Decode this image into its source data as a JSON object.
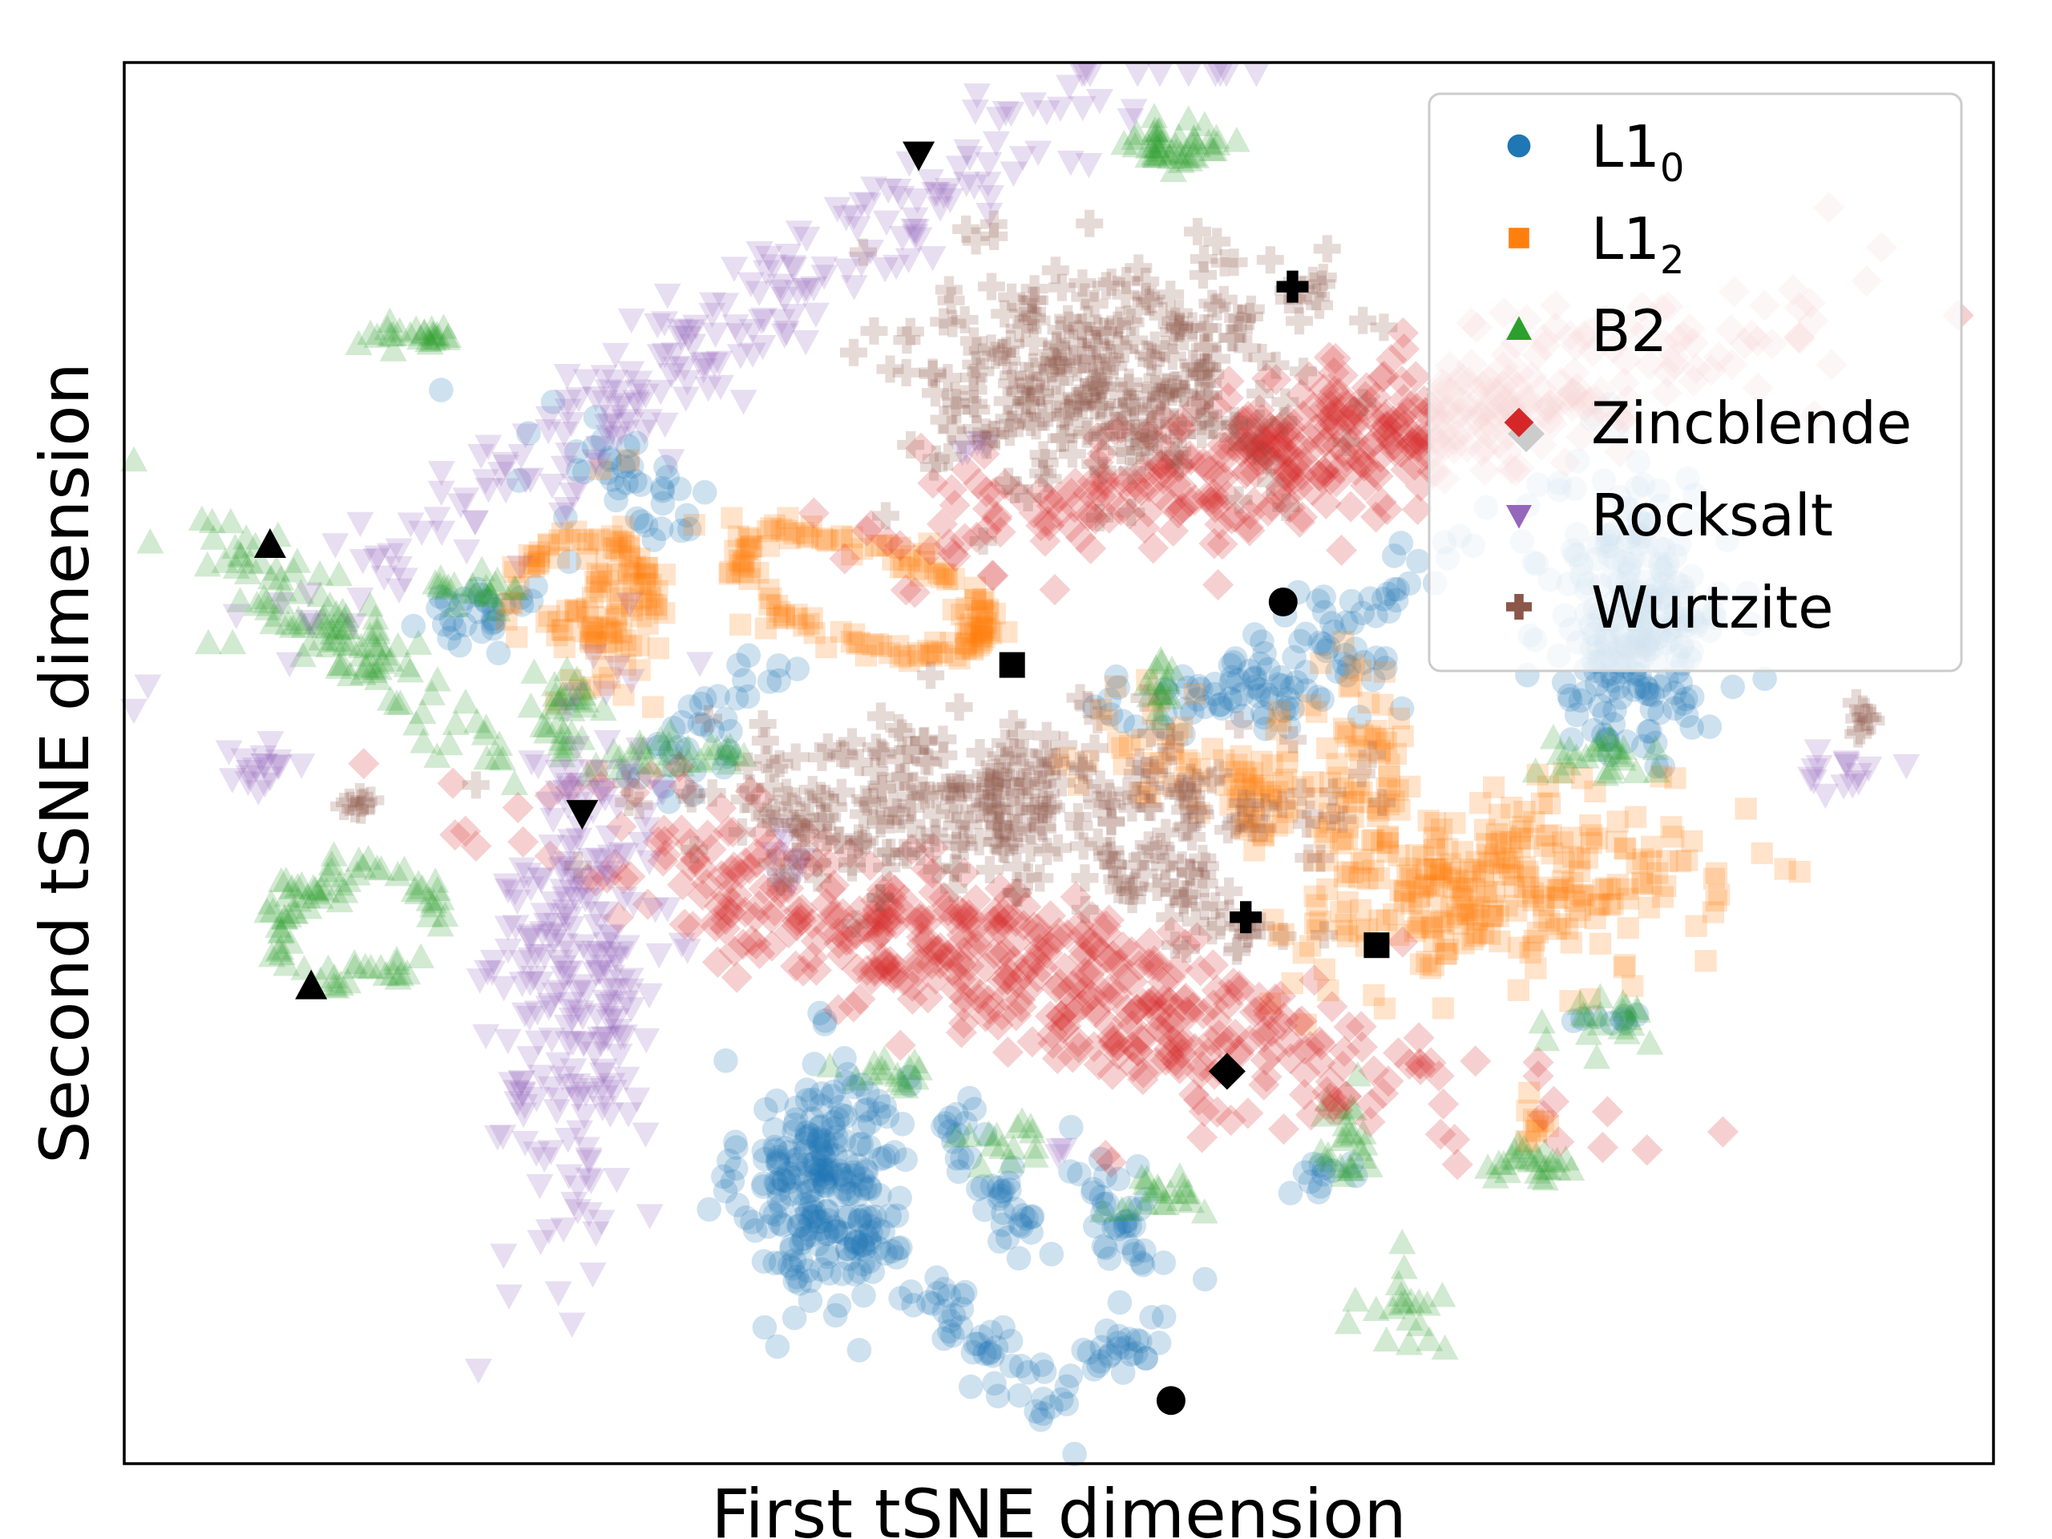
{
  "chart_data": {
    "type": "scatter",
    "xlabel": "First tSNE dimension",
    "ylabel": "Second tSNE dimension",
    "xlim": [
      0,
      100
    ],
    "ylim": [
      0,
      100
    ],
    "x_ticks": "none",
    "y_ticks": "none",
    "grid": false,
    "legend_position": "top-right",
    "series": [
      {
        "name": "L1",
        "name_subscript": "0",
        "marker": "circle",
        "color": "#1f77b4",
        "clusters": [
          {
            "cx": 37.5,
            "cy": 20.0,
            "sx": 2.2,
            "sy": 4.5,
            "n": 260
          },
          {
            "cx": 81.0,
            "cy": 60.5,
            "sx": 2.3,
            "sy": 5.0,
            "n": 260
          },
          {
            "cx": 26.5,
            "cy": 70.0,
            "sx": 4.0,
            "sy": 1.8,
            "n": 40,
            "ang": -35
          },
          {
            "cx": 19.0,
            "cy": 61.0,
            "sx": 2.0,
            "sy": 1.0,
            "n": 30,
            "ang": 25
          },
          {
            "cx": 31.5,
            "cy": 53.0,
            "sx": 1.2,
            "sy": 3.0,
            "n": 35,
            "ang": -40
          },
          {
            "cx": 59.0,
            "cy": 54.5,
            "sx": 4.0,
            "sy": 1.2,
            "n": 50,
            "ang": 5
          },
          {
            "cx": 65.0,
            "cy": 60.5,
            "sx": 5.0,
            "sy": 1.2,
            "n": 55,
            "ang": 40
          },
          {
            "cx": 66.5,
            "cy": 57.5,
            "sx": 0.6,
            "sy": 1.2,
            "n": 10
          },
          {
            "cx": 46.5,
            "cy": 20.0,
            "sx": 1.0,
            "sy": 3.0,
            "n": 40,
            "ang": 20
          },
          {
            "cx": 53.0,
            "cy": 18.0,
            "sx": 1.0,
            "sy": 2.5,
            "n": 35,
            "ang": 20
          },
          {
            "cx": 46.0,
            "cy": 8.5,
            "sx": 1.0,
            "sy": 3.5,
            "n": 45,
            "ang": 35
          },
          {
            "cx": 53.0,
            "cy": 8.0,
            "sx": 1.0,
            "sy": 2.5,
            "n": 30,
            "ang": -40
          },
          {
            "cx": 64.0,
            "cy": 20.5,
            "sx": 1.5,
            "sy": 0.6,
            "n": 12
          },
          {
            "cx": 79.5,
            "cy": 32.0,
            "sx": 1.0,
            "sy": 0.6,
            "n": 8
          }
        ]
      },
      {
        "name": "L1",
        "name_subscript": "2",
        "marker": "square",
        "color": "#ff7f0e",
        "clusters": [
          {
            "cx": 73.5,
            "cy": 41.0,
            "sx": 5.5,
            "sy": 3.2,
            "n": 280,
            "ang": 12
          },
          {
            "cx": 60.5,
            "cy": 48.5,
            "sx": 5.0,
            "sy": 2.0,
            "n": 110,
            "ang": -25
          },
          {
            "cx": 26.0,
            "cy": 60.0,
            "sx": 1.5,
            "sy": 3.5,
            "n": 70
          },
          {
            "cx": 66.5,
            "cy": 50.5,
            "sx": 1.2,
            "sy": 4.0,
            "n": 45,
            "ang": 10
          },
          {
            "cx": 75.5,
            "cy": 24.5,
            "sx": 0.5,
            "sy": 1.2,
            "n": 10
          }
        ],
        "rings": [
          {
            "cx": 39.5,
            "cy": 62.0,
            "rx": 7.0,
            "ry": 3.5,
            "ang": -25,
            "n": 140
          },
          {
            "cx": 24.5,
            "cy": 62.5,
            "rx": 3.5,
            "ry": 3.2,
            "ang": 0,
            "n": 60
          }
        ],
        "points": [
          [
            32.5,
            67.5
          ],
          [
            30.5,
            67.0
          ],
          [
            35.5,
            67.5
          ],
          [
            21.0,
            59.0
          ]
        ]
      },
      {
        "name": "B2",
        "marker": "triangle-up",
        "color": "#2ca02c",
        "clusters": [
          {
            "cx": 56.0,
            "cy": 94.0,
            "sx": 1.5,
            "sy": 0.8,
            "n": 45
          },
          {
            "cx": 15.0,
            "cy": 80.5,
            "sx": 1.8,
            "sy": 0.5,
            "n": 25
          },
          {
            "cx": 11.5,
            "cy": 59.0,
            "sx": 6.0,
            "sy": 1.5,
            "n": 110,
            "ang": -45
          },
          {
            "cx": 18.5,
            "cy": 62.0,
            "sx": 1.5,
            "sy": 0.8,
            "n": 20
          },
          {
            "cx": 23.5,
            "cy": 53.5,
            "sx": 1.2,
            "sy": 1.8,
            "n": 30
          },
          {
            "cx": 29.5,
            "cy": 50.5,
            "sx": 2.5,
            "sy": 0.8,
            "n": 30
          },
          {
            "cx": 55.5,
            "cy": 55.5,
            "sx": 0.6,
            "sy": 1.2,
            "n": 15
          },
          {
            "cx": 78.0,
            "cy": 50.5,
            "sx": 1.5,
            "sy": 1.0,
            "n": 25
          },
          {
            "cx": 41.0,
            "cy": 27.5,
            "sx": 1.2,
            "sy": 0.6,
            "n": 15
          },
          {
            "cx": 47.5,
            "cy": 23.0,
            "sx": 1.2,
            "sy": 0.8,
            "n": 15
          },
          {
            "cx": 55.5,
            "cy": 19.0,
            "sx": 1.5,
            "sy": 0.8,
            "n": 20
          },
          {
            "cx": 65.0,
            "cy": 23.0,
            "sx": 1.0,
            "sy": 1.8,
            "n": 25
          },
          {
            "cx": 75.5,
            "cy": 21.5,
            "sx": 1.5,
            "sy": 0.8,
            "n": 25
          },
          {
            "cx": 79.5,
            "cy": 31.5,
            "sx": 1.5,
            "sy": 0.8,
            "n": 20
          },
          {
            "cx": 68.5,
            "cy": 11.5,
            "sx": 1.0,
            "sy": 1.5,
            "n": 20
          },
          {
            "cx": 10.0,
            "cy": 41.0,
            "sx": 1.2,
            "sy": 0.6,
            "n": 12
          }
        ],
        "rings": [
          {
            "cx": 12.5,
            "cy": 38.5,
            "rx": 4.5,
            "ry": 3.5,
            "ang": 35,
            "n": 70
          }
        ],
        "points": [
          [
            4.5,
            58.5
          ],
          [
            5.8,
            58.5
          ],
          [
            6.2,
            61.5
          ]
        ]
      },
      {
        "name": "Zincblende",
        "marker": "diamond",
        "color": "#d62728",
        "clusters": [
          {
            "cx": 66.0,
            "cy": 73.5,
            "sx": 12.0,
            "sy": 2.4,
            "n": 480,
            "ang": 18
          },
          {
            "cx": 48.0,
            "cy": 35.0,
            "sx": 13.0,
            "sy": 2.6,
            "n": 500,
            "ang": -22
          }
        ],
        "points": [
          [
            34.0,
            47.5
          ],
          [
            33.5,
            48.0
          ],
          [
            52.5,
            22.0
          ],
          [
            52.8,
            21.5
          ]
        ]
      },
      {
        "name": "Rocksalt",
        "marker": "triangle-down",
        "color": "#9467bd",
        "clusters": [
          {
            "cx": 31.5,
            "cy": 80.5,
            "sx": 15.0,
            "sy": 1.8,
            "n": 230,
            "ang": 42
          },
          {
            "cx": 24.5,
            "cy": 35.0,
            "sx": 2.0,
            "sy": 10.0,
            "n": 260,
            "ang": -3
          },
          {
            "cx": 7.5,
            "cy": 49.5,
            "sx": 1.2,
            "sy": 0.8,
            "n": 18
          },
          {
            "cx": 92.5,
            "cy": 49.5,
            "sx": 1.2,
            "sy": 0.8,
            "n": 15
          },
          {
            "cx": 35.5,
            "cy": 43.0,
            "sx": 0.5,
            "sy": 1.0,
            "n": 8
          },
          {
            "cx": 45.5,
            "cy": 73.0,
            "sx": 0.5,
            "sy": 0.4,
            "n": 5
          },
          {
            "cx": 50.0,
            "cy": 22.5,
            "sx": 0.3,
            "sy": 0.3,
            "n": 3
          }
        ]
      },
      {
        "name": "Wurtzite",
        "marker": "plus",
        "color": "#8c564b",
        "clusters": [
          {
            "cx": 52.5,
            "cy": 78.0,
            "sx": 5.0,
            "sy": 4.5,
            "n": 300
          },
          {
            "cx": 46.0,
            "cy": 47.0,
            "sx": 8.0,
            "sy": 3.0,
            "n": 300
          },
          {
            "cx": 55.5,
            "cy": 41.5,
            "sx": 2.5,
            "sy": 1.0,
            "n": 25
          },
          {
            "cx": 59.5,
            "cy": 38.5,
            "sx": 1.5,
            "sy": 1.0,
            "n": 20
          },
          {
            "cx": 63.0,
            "cy": 83.5,
            "sx": 0.6,
            "sy": 0.6,
            "n": 8
          },
          {
            "cx": 12.5,
            "cy": 47.0,
            "sx": 0.8,
            "sy": 0.4,
            "n": 8
          },
          {
            "cx": 93.0,
            "cy": 53.5,
            "sx": 0.3,
            "sy": 0.8,
            "n": 8
          }
        ]
      }
    ],
    "highlight_points": [
      {
        "series": "L1_0",
        "marker": "circle",
        "x": 62.0,
        "y": 61.5
      },
      {
        "series": "L1_0",
        "marker": "circle",
        "x": 56.0,
        "y": 4.5
      },
      {
        "series": "L1_2",
        "marker": "square",
        "x": 47.5,
        "y": 57.0
      },
      {
        "series": "L1_2",
        "marker": "square",
        "x": 67.0,
        "y": 37.0
      },
      {
        "series": "B2",
        "marker": "triangle-up",
        "x": 7.8,
        "y": 65.5
      },
      {
        "series": "B2",
        "marker": "triangle-up",
        "x": 10.0,
        "y": 34.0
      },
      {
        "series": "Zincblende",
        "marker": "diamond",
        "x": 75.0,
        "y": 73.5
      },
      {
        "series": "Zincblende",
        "marker": "diamond",
        "x": 59.0,
        "y": 28.0
      },
      {
        "series": "Rocksalt",
        "marker": "triangle-down",
        "x": 42.5,
        "y": 93.5
      },
      {
        "series": "Rocksalt",
        "marker": "triangle-down",
        "x": 24.5,
        "y": 46.5
      },
      {
        "series": "Wurtzite",
        "marker": "plus",
        "x": 62.5,
        "y": 84.0
      },
      {
        "series": "Wurtzite",
        "marker": "plus",
        "x": 60.0,
        "y": 39.0
      }
    ]
  }
}
